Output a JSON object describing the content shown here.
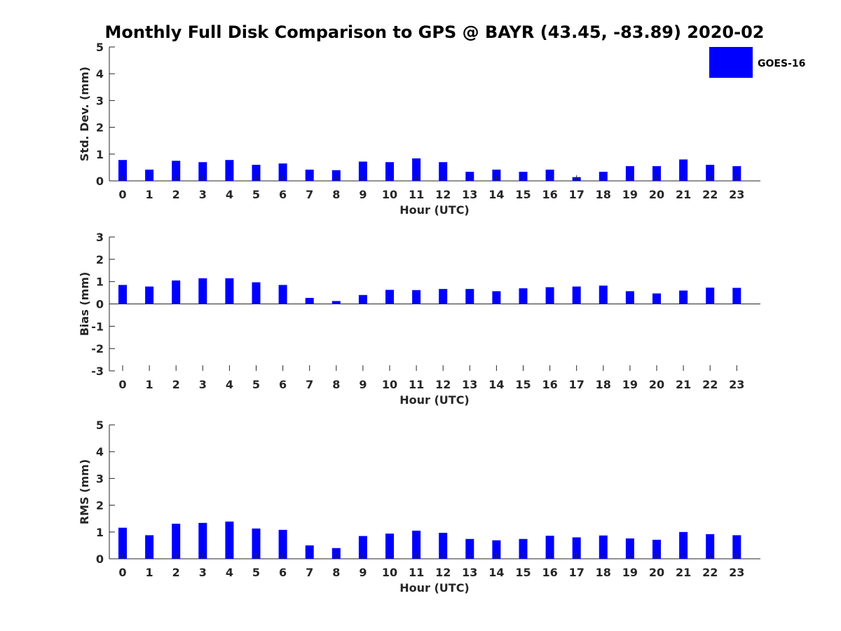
{
  "title": "Monthly Full Disk Comparison to GPS @ BAYR (43.45, -83.89) 2020-02",
  "legend": {
    "label": "GOES-16",
    "color": "#0000ff"
  },
  "chart_data": [
    {
      "type": "bar",
      "ylabel": "Std. Dev. (mm)",
      "xlabel": "Hour (UTC)",
      "ylim": [
        0,
        5
      ],
      "yticks": [
        "0",
        "1",
        "2",
        "3",
        "4",
        "5"
      ],
      "categories": [
        "0",
        "1",
        "2",
        "3",
        "4",
        "5",
        "6",
        "7",
        "8",
        "9",
        "10",
        "11",
        "12",
        "13",
        "14",
        "15",
        "16",
        "17",
        "18",
        "19",
        "20",
        "21",
        "22",
        "23"
      ],
      "series": [
        {
          "name": "GOES-16",
          "values": [
            0.78,
            0.42,
            0.75,
            0.7,
            0.78,
            0.6,
            0.65,
            0.42,
            0.4,
            0.72,
            0.7,
            0.84,
            0.7,
            0.34,
            0.42,
            0.34,
            0.42,
            0.14,
            0.34,
            0.55,
            0.55,
            0.8,
            0.6,
            0.55
          ]
        }
      ]
    },
    {
      "type": "bar",
      "ylabel": "Bias (mm)",
      "xlabel": "Hour (UTC)",
      "ylim": [
        -3,
        3
      ],
      "yticks": [
        "-3",
        "-2",
        "-1",
        "0",
        "1",
        "2",
        "3"
      ],
      "categories": [
        "0",
        "1",
        "2",
        "3",
        "4",
        "5",
        "6",
        "7",
        "8",
        "9",
        "10",
        "11",
        "12",
        "13",
        "14",
        "15",
        "16",
        "17",
        "18",
        "19",
        "20",
        "21",
        "22",
        "23"
      ],
      "series": [
        {
          "name": "GOES-16",
          "values": [
            0.85,
            0.78,
            1.05,
            1.15,
            1.15,
            0.97,
            0.85,
            0.27,
            0.13,
            0.4,
            0.63,
            0.62,
            0.67,
            0.67,
            0.57,
            0.7,
            0.75,
            0.78,
            0.82,
            0.57,
            0.47,
            0.6,
            0.73,
            0.72
          ]
        }
      ]
    },
    {
      "type": "bar",
      "ylabel": "RMS (mm)",
      "xlabel": "Hour (UTC)",
      "ylim": [
        0,
        5
      ],
      "yticks": [
        "0",
        "1",
        "2",
        "3",
        "4",
        "5"
      ],
      "categories": [
        "0",
        "1",
        "2",
        "3",
        "4",
        "5",
        "6",
        "7",
        "8",
        "9",
        "10",
        "11",
        "12",
        "13",
        "14",
        "15",
        "16",
        "17",
        "18",
        "19",
        "20",
        "21",
        "22",
        "23"
      ],
      "series": [
        {
          "name": "GOES-16",
          "values": [
            1.16,
            0.88,
            1.31,
            1.34,
            1.39,
            1.13,
            1.08,
            0.5,
            0.4,
            0.85,
            0.94,
            1.05,
            0.97,
            0.74,
            0.69,
            0.74,
            0.86,
            0.8,
            0.87,
            0.76,
            0.71,
            1.0,
            0.92,
            0.88
          ]
        }
      ]
    }
  ]
}
